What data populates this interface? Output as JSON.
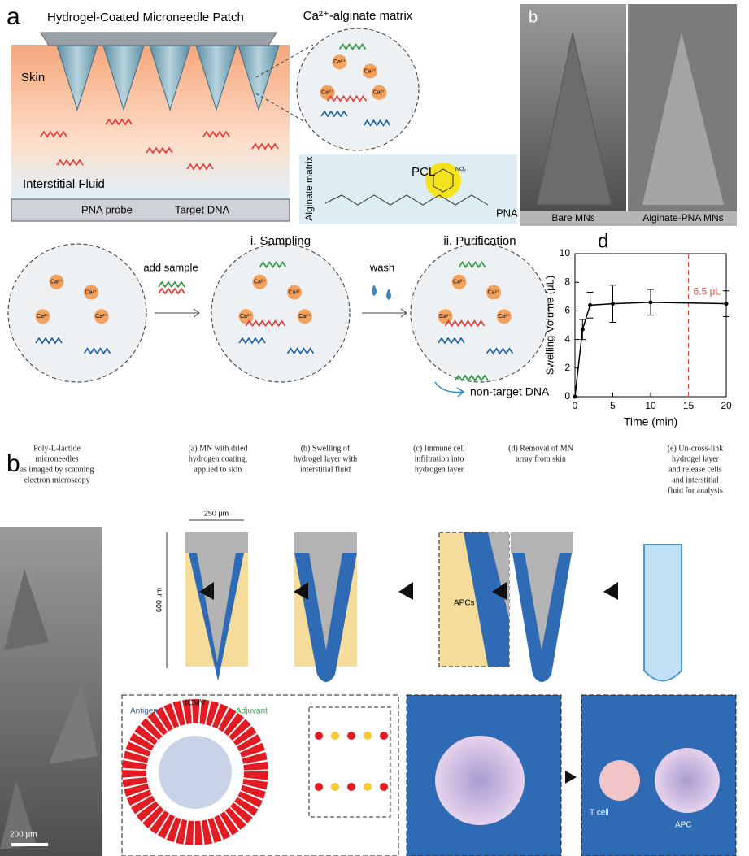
{
  "panel_a": {
    "label": "a",
    "title": "Hydrogel-Coated Microneedle Patch",
    "matrix_title": "Ca²⁺-alginate matrix",
    "ion": "Ca²⁺",
    "skin": "Skin",
    "fluid": "Interstitial Fluid",
    "legend": [
      "PNA probe",
      "Target DNA"
    ],
    "chem": {
      "side_label": "Alginate matrix",
      "pcl": "PCL",
      "nitro": "NO₂",
      "pna": "PNA"
    }
  },
  "panel_b_sem": {
    "label": "b",
    "captions": [
      "Bare MNs",
      "Alginate-PNA MNs"
    ]
  },
  "panel_c": {
    "add": "add sample",
    "step1": "i. Sampling",
    "wash": "wash",
    "step2": "ii. Purification",
    "waste": "non-target DNA"
  },
  "panel_b2": {
    "label": "b",
    "captions": [
      [
        "Poly-L-lactide",
        "microneedles",
        "as imaged by scanning",
        "electron microscopy"
      ],
      [
        "(a) MN with dried",
        "hydrogen coating,",
        "applied to skin"
      ],
      [
        "(b) Swelling of",
        "hydrogel layer with",
        "interstitial fluid"
      ],
      [
        "(c) Immune cell",
        "infiltration into",
        "hydrogen layer"
      ],
      [
        "(d) Removal of MN",
        "array from skin"
      ],
      [
        "(e) Un-cross-link",
        "hydrogel layer",
        "and release cells",
        "and interstitial",
        "fluid for analysis"
      ]
    ],
    "width": "250 µm",
    "height": "600 µm",
    "apcs": "APCs",
    "icmv": "ICMV",
    "antigen": "Antigen",
    "adjuvant": "Adjuvant",
    "tcell": "T cell",
    "apc": "APC",
    "scale": "200 µm"
  },
  "chart_data": {
    "type": "scatter",
    "panel_label": "d",
    "x": [
      0,
      1,
      2,
      5,
      10,
      20
    ],
    "values": [
      0,
      4.7,
      6.4,
      6.5,
      6.6,
      6.5
    ],
    "errors": [
      null,
      0.7,
      0.9,
      1.3,
      0.9,
      0.9
    ],
    "color": "#000000",
    "xlim": [
      0,
      20
    ],
    "ylim": [
      0,
      10
    ],
    "xticks": [
      0,
      5,
      10,
      15,
      20
    ],
    "yticks": [
      0,
      2,
      4,
      6,
      8,
      10
    ],
    "x_label": "Time (min)",
    "y_label": "Swelling Volume (μL)",
    "reference_line": {
      "x": 15,
      "color": "#e8473c",
      "label": "6.5 μL"
    }
  }
}
